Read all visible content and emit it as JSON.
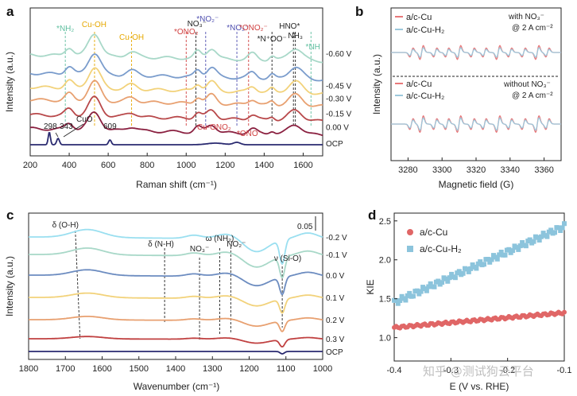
{
  "watermark": "知乎 @测试狗云平台",
  "chart_data": [
    {
      "panel": "a",
      "type": "line",
      "xlabel": "Raman shift (cm⁻¹)",
      "ylabel": "Intensity (a.u.)",
      "xlim": [
        200,
        1700
      ],
      "xticks": [
        200,
        400,
        600,
        800,
        1000,
        1200,
        1400,
        1600
      ],
      "series": [
        {
          "name": "-0.60 V",
          "color": "#a8d8c8",
          "offset": 7.8
        },
        {
          "name": "",
          "color": "#7a9ccc",
          "offset": 6.2
        },
        {
          "name": "-0.45 V",
          "color": "#f2d27a",
          "offset": 5.0
        },
        {
          "name": "-0.30 V",
          "color": "#e8a070",
          "offset": 3.9
        },
        {
          "name": "-0.15 V",
          "color": "#b8484a",
          "offset": 2.6
        },
        {
          "name": "0.00 V",
          "color": "#8a2040",
          "offset": 1.4
        },
        {
          "name": "OCP",
          "color": "#2a2a70",
          "offset": 0.0
        }
      ],
      "peaks": [
        {
          "label": "*NH₂",
          "x": 380,
          "color": "#5fbf9f"
        },
        {
          "label": "Cu-OH",
          "x": 530,
          "color": "#e6a800"
        },
        {
          "label": "Cu-OH",
          "x": 720,
          "color": "#e6a800"
        },
        {
          "label": "*ONO₂",
          "x": 1000,
          "color": "#d04040"
        },
        {
          "label": "NO₃⁻",
          "x": 1050,
          "color": "#222222"
        },
        {
          "label": "*NO₂⁻",
          "x": 1100,
          "color": "#5050b0"
        },
        {
          "label": "*NO₂⁻",
          "x": 1260,
          "color": "#5050b0"
        },
        {
          "label": "*ONO₂⁻",
          "x": 1320,
          "color": "#d04040"
        },
        {
          "label": "*N⁺OO⁻",
          "x": 1440,
          "color": "#222222"
        },
        {
          "label": "HNO*",
          "x": 1550,
          "color": "#222222"
        },
        {
          "label": "NH₃",
          "x": 1560,
          "color": "#222222"
        },
        {
          "label": "*NH",
          "x": 1640,
          "color": "#5fbf9f"
        }
      ],
      "annotations": [
        "298",
        "343",
        "CuO",
        "609",
        "Cu-ONO₂",
        "*ONO⁻"
      ]
    },
    {
      "panel": "b",
      "type": "line",
      "xlabel": "Magnetic field (G)",
      "ylabel": "Intensity (a.u.)",
      "xlim": [
        3270,
        3370
      ],
      "xticks": [
        3280,
        3300,
        3320,
        3340,
        3360
      ],
      "legend_top": [
        "a/c-Cu",
        "a/c-Cu-H₂"
      ],
      "legend_bottom": [
        "a/c-Cu",
        "a/c-Cu-H₂"
      ],
      "note_top": [
        "with NO₃⁻",
        "@ 2 A cm⁻²"
      ],
      "note_bottom": [
        "without NO₃⁻",
        "@ 2 A cm⁻²"
      ],
      "colors": {
        "acCu": "#e8787a",
        "acCuH2": "#9cc8dc"
      }
    },
    {
      "panel": "c",
      "type": "line",
      "xlabel": "Wavenumber (cm⁻¹)",
      "ylabel": "Intensity (a.u.)",
      "xlim": [
        1800,
        1000
      ],
      "xticks": [
        1800,
        1700,
        1600,
        1500,
        1400,
        1300,
        1200,
        1100,
        1000
      ],
      "scale_bar": "0.05",
      "series": [
        {
          "name": "-0.2 V",
          "color": "#9adff0"
        },
        {
          "name": "-0.1 V",
          "color": "#a8d8c8"
        },
        {
          "name": "0.0 V",
          "color": "#6c8cc0"
        },
        {
          "name": "0.1 V",
          "color": "#f2d27a"
        },
        {
          "name": "0.2 V",
          "color": "#e8a070"
        },
        {
          "name": "0.3 V",
          "color": "#c04040"
        },
        {
          "name": "OCP",
          "color": "#2a2a70"
        }
      ],
      "bands": [
        {
          "label": "δ (O-H)",
          "x": 1660
        },
        {
          "label": "δ (N-H)",
          "x": 1430
        },
        {
          "label": "NO₃⁻",
          "x": 1335
        },
        {
          "label": "ω (NH₂)",
          "x": 1280
        },
        {
          "label": "NO₂⁻",
          "x": 1250
        },
        {
          "label": "ν (Si-O)",
          "x": 1110
        }
      ]
    },
    {
      "panel": "d",
      "type": "scatter",
      "xlabel": "E (V vs. RHE)",
      "ylabel": "KIE",
      "xlim": [
        -0.4,
        -0.1
      ],
      "ylim": [
        0.7,
        2.6
      ],
      "xticks": [
        -0.4,
        -0.3,
        -0.2,
        -0.1
      ],
      "xtick_labels": [
        "-0.4",
        "-0.3",
        "-0.2",
        "-0.1"
      ],
      "yticks": [
        1.0,
        1.5,
        2.0,
        2.5
      ],
      "ytick_labels": [
        "1.0",
        "1.5",
        "2.0",
        "2.5"
      ],
      "series": [
        {
          "name": "a/c-Cu",
          "color": "#e06666",
          "x0": -0.4,
          "x1": -0.1,
          "y0": 1.13,
          "y1": 1.32
        },
        {
          "name": "a/c-Cu-H₂",
          "color": "#8cc4dc",
          "x0": -0.4,
          "x1": -0.1,
          "y0": 1.45,
          "y1": 2.43
        }
      ]
    }
  ]
}
